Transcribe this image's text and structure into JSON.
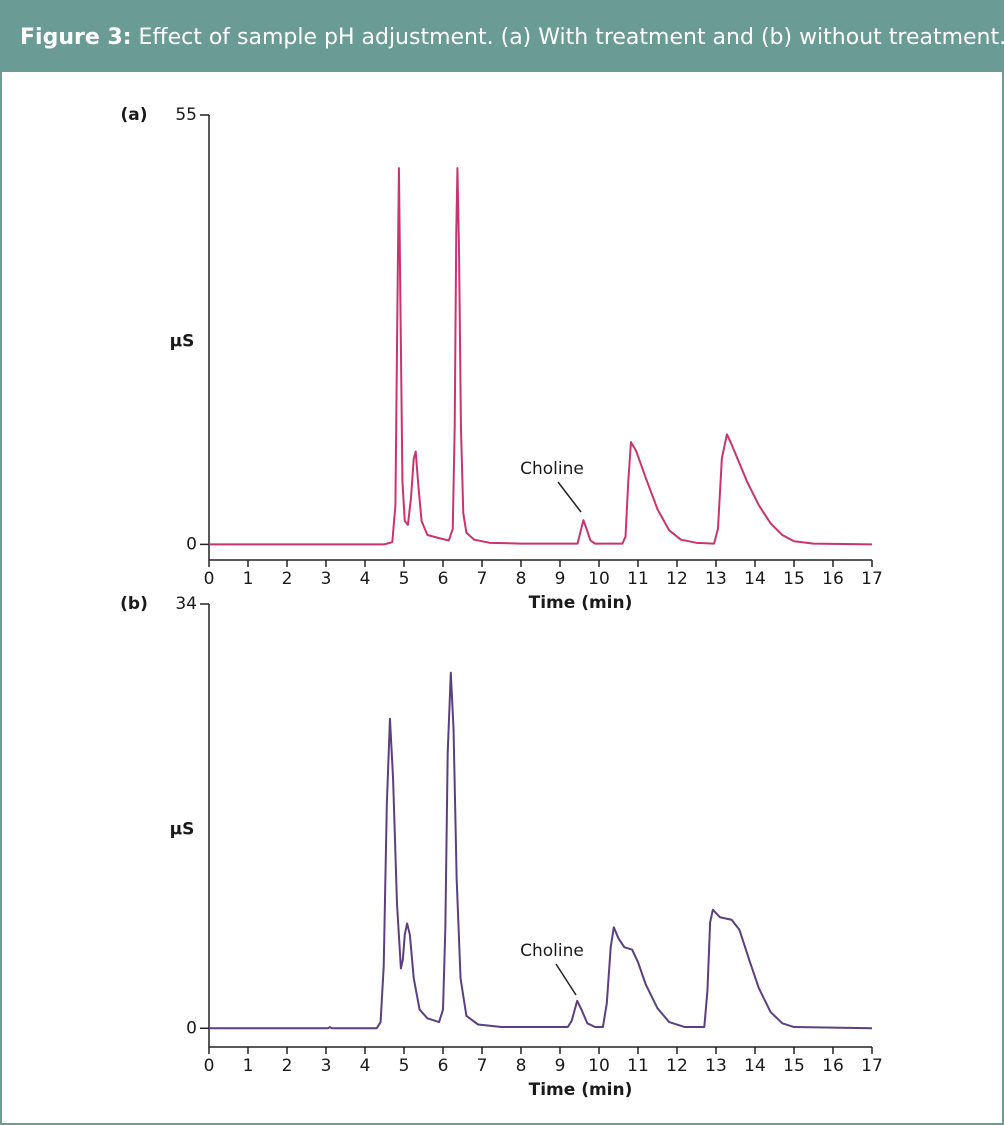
{
  "header": {
    "label": "Figure 3:",
    "title": "Effect of sample pH adjustment. (a) With treatment and (b) without treatment."
  },
  "chart_data": [
    {
      "type": "line",
      "label": "(a)",
      "y_label": "µS",
      "x_label": "Time (min)",
      "annotation": "Choline",
      "xlim": [
        0,
        17
      ],
      "xticks": [
        0,
        1,
        2,
        3,
        4,
        5,
        6,
        7,
        8,
        9,
        10,
        11,
        12,
        13,
        14,
        15,
        16,
        17
      ],
      "ylim": [
        -2,
        55
      ],
      "yticks": [
        0,
        55
      ],
      "color": "#c9346f",
      "x": [
        0,
        4.5,
        4.7,
        4.78,
        4.83,
        4.87,
        4.91,
        4.96,
        5.02,
        5.1,
        5.18,
        5.25,
        5.3,
        5.36,
        5.45,
        5.6,
        5.9,
        6.15,
        6.25,
        6.3,
        6.34,
        6.37,
        6.41,
        6.46,
        6.52,
        6.6,
        6.8,
        7.2,
        8,
        9.45,
        9.52,
        9.6,
        9.68,
        9.78,
        9.9,
        10.6,
        10.68,
        10.75,
        10.82,
        10.95,
        11.2,
        11.5,
        11.8,
        12.1,
        12.5,
        12.95,
        13.05,
        13.15,
        13.28,
        13.4,
        13.55,
        13.8,
        14.1,
        14.4,
        14.7,
        15,
        15.5,
        17
      ],
      "values": [
        0,
        0,
        0.3,
        5,
        30,
        48.2,
        30,
        8,
        3,
        2.5,
        6,
        11,
        11.9,
        8,
        3,
        1.2,
        0.8,
        0.5,
        2,
        15,
        40,
        48.2,
        38,
        15,
        4,
        1.5,
        0.6,
        0.2,
        0.1,
        0.1,
        1.5,
        3.1,
        2,
        0.5,
        0.1,
        0.1,
        1,
        8,
        13.1,
        12,
        8.5,
        4.5,
        1.8,
        0.6,
        0.2,
        0.1,
        2,
        11,
        14.1,
        12.8,
        11,
        8,
        5,
        2.7,
        1.2,
        0.4,
        0.1,
        0
      ]
    },
    {
      "type": "line",
      "label": "(b)",
      "y_label": "µS",
      "x_label": "Time (min)",
      "annotation": "Choline",
      "xlim": [
        0,
        17
      ],
      "xticks": [
        0,
        1,
        2,
        3,
        4,
        5,
        6,
        7,
        8,
        9,
        10,
        11,
        12,
        13,
        14,
        15,
        16,
        17
      ],
      "ylim": [
        -1.5,
        34
      ],
      "yticks": [
        0,
        34
      ],
      "color": "#5b3f80",
      "x": [
        0,
        3.05,
        3.1,
        3.15,
        4.3,
        4.4,
        4.48,
        4.56,
        4.64,
        4.72,
        4.82,
        4.92,
        4.97,
        5.02,
        5.08,
        5.15,
        5.25,
        5.4,
        5.6,
        5.9,
        6.0,
        6.06,
        6.12,
        6.2,
        6.27,
        6.35,
        6.45,
        6.6,
        6.9,
        7.5,
        9.2,
        9.3,
        9.44,
        9.55,
        9.7,
        9.9,
        10.1,
        10.2,
        10.3,
        10.38,
        10.5,
        10.65,
        10.85,
        11.0,
        11.2,
        11.5,
        11.8,
        12.2,
        12.7,
        12.78,
        12.85,
        12.92,
        13.1,
        13.4,
        13.6,
        13.85,
        14.1,
        14.4,
        14.7,
        15,
        17
      ],
      "values": [
        0,
        0,
        0.1,
        0,
        0,
        0.5,
        5,
        18,
        24.8,
        20,
        10,
        4.8,
        5.5,
        7.5,
        8.4,
        7.5,
        4,
        1.5,
        0.8,
        0.5,
        1.5,
        8,
        22,
        28.5,
        24,
        12,
        4,
        1,
        0.3,
        0.1,
        0.1,
        0.6,
        2.2,
        1.5,
        0.4,
        0.1,
        0.1,
        2,
        6.5,
        8.1,
        7.2,
        6.5,
        6.3,
        5.3,
        3.5,
        1.6,
        0.5,
        0.1,
        0.1,
        3,
        8.5,
        9.5,
        8.9,
        8.7,
        7.9,
        5.5,
        3.2,
        1.3,
        0.4,
        0.1,
        0
      ]
    }
  ]
}
